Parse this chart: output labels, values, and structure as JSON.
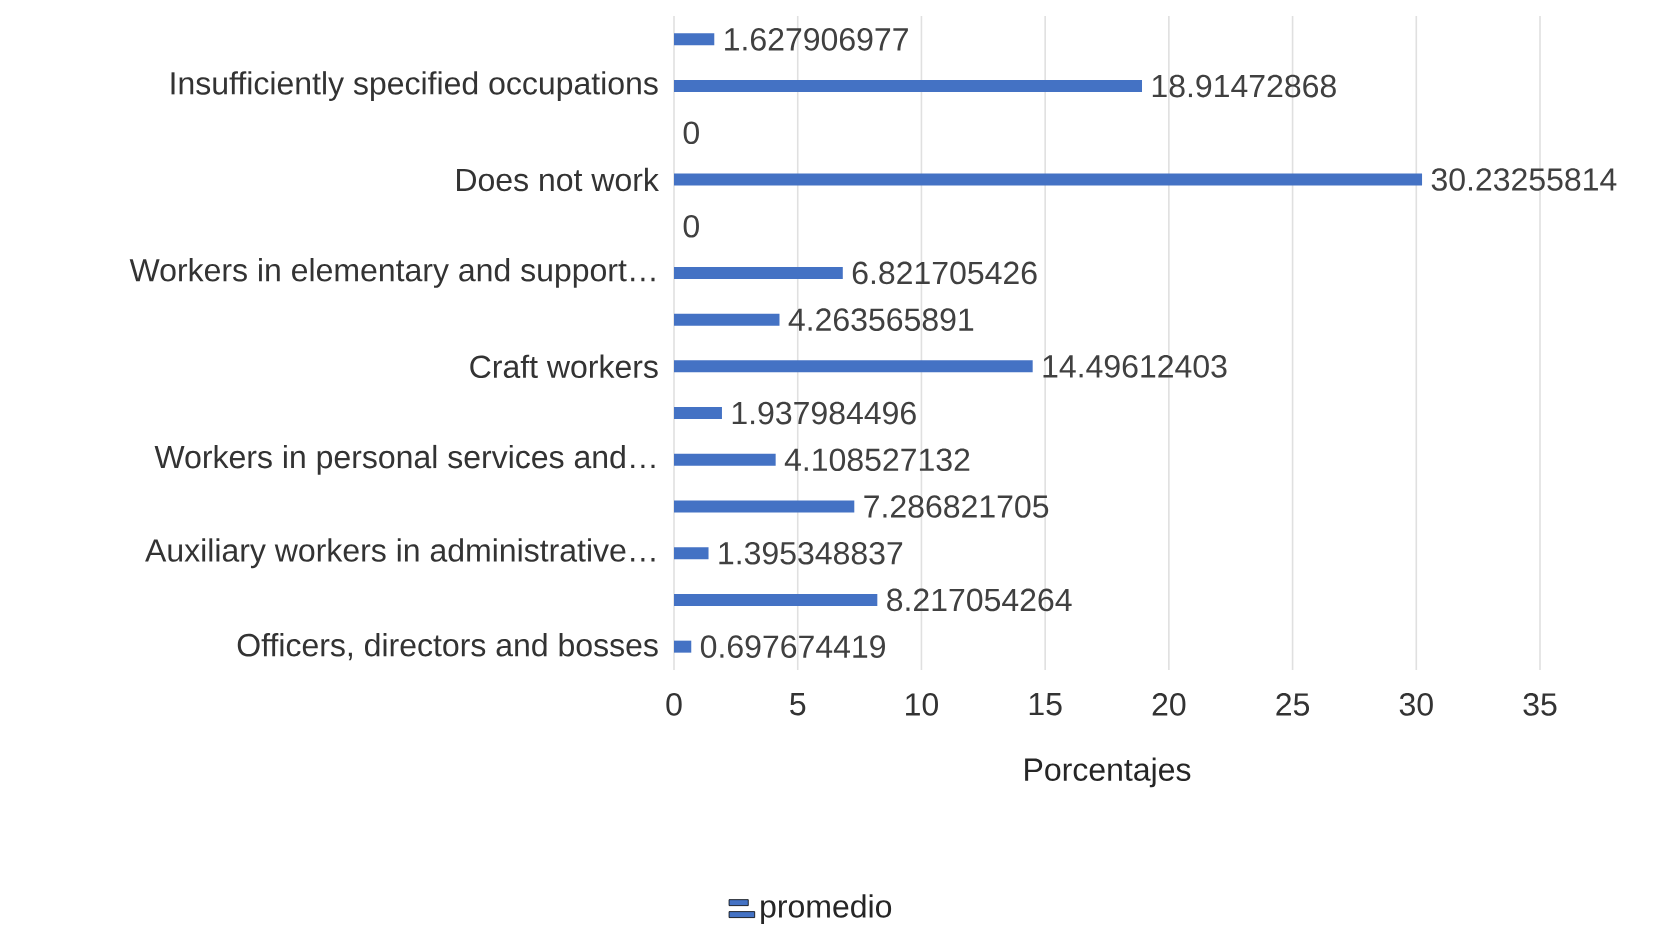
{
  "chart_data": {
    "type": "bar",
    "orientation": "horizontal",
    "xlabel": "Porcentajes",
    "categories": [
      null,
      "Insufficiently specified occupations",
      null,
      "Does not work",
      null,
      "Workers in elementary and support…",
      null,
      "Craft workers",
      null,
      "Workers in personal services and…",
      null,
      "Auxiliary workers in administrative…",
      null,
      "Officers, directors and bosses"
    ],
    "series": [
      {
        "name": "promedio",
        "color": "#4472c4",
        "values": [
          1.627906977,
          18.91472868,
          0,
          30.23255814,
          0,
          6.821705426,
          4.263565891,
          14.49612403,
          1.937984496,
          4.108527132,
          7.286821705,
          1.395348837,
          8.217054264,
          0.697674419
        ],
        "value_labels": [
          "1.627906977",
          "18.91472868",
          "0",
          "30.23255814",
          "0",
          "6.821705426",
          "4.263565891",
          "14.49612403",
          "1.937984496",
          "4.108527132",
          "7.286821705",
          "1.395348837",
          "8.217054264",
          "0.697674419"
        ]
      }
    ],
    "xlim": [
      0,
      35
    ],
    "xticks": [
      0,
      5,
      10,
      15,
      20,
      25,
      30,
      35
    ],
    "grid": "x",
    "legend": "bottom"
  }
}
